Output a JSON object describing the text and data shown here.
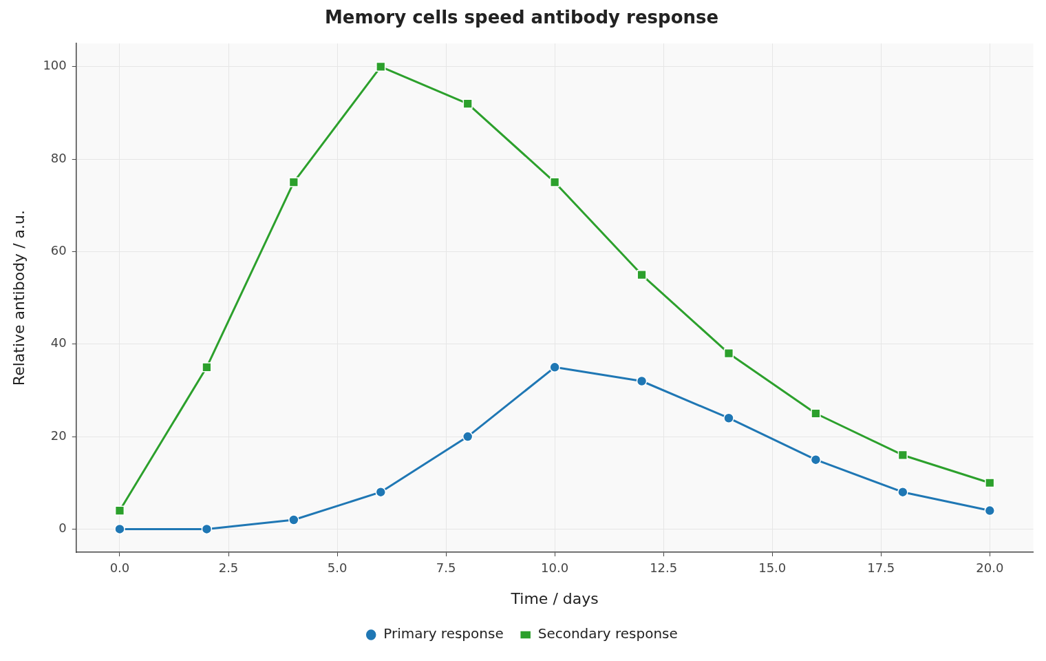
{
  "chart_data": {
    "type": "line",
    "title": "Memory cells speed antibody response",
    "xlabel": "Time / days",
    "ylabel": "Relative antibody / a.u.",
    "x": [
      0,
      2,
      4,
      6,
      8,
      10,
      12,
      14,
      16,
      18,
      20
    ],
    "series": [
      {
        "name": "Primary response",
        "color": "#1f77b4",
        "marker": "circle",
        "values": [
          0,
          0,
          2,
          8,
          20,
          35,
          32,
          24,
          15,
          8,
          4
        ]
      },
      {
        "name": "Secondary response",
        "color": "#2ca02c",
        "marker": "square",
        "values": [
          4,
          35,
          75,
          100,
          92,
          75,
          55,
          38,
          25,
          16,
          10
        ]
      }
    ],
    "xlim": [
      -1,
      21
    ],
    "ylim": [
      -5,
      105
    ],
    "xticks": [
      {
        "value": 0,
        "label": "0.0"
      },
      {
        "value": 2.5,
        "label": "2.5"
      },
      {
        "value": 5,
        "label": "5.0"
      },
      {
        "value": 7.5,
        "label": "7.5"
      },
      {
        "value": 10,
        "label": "10.0"
      },
      {
        "value": 12.5,
        "label": "12.5"
      },
      {
        "value": 15,
        "label": "15.0"
      },
      {
        "value": 17.5,
        "label": "17.5"
      },
      {
        "value": 20,
        "label": "20.0"
      }
    ],
    "yticks": [
      0,
      20,
      40,
      60,
      80,
      100
    ],
    "grid": true,
    "legend": "bottom",
    "line_style": "solid"
  }
}
